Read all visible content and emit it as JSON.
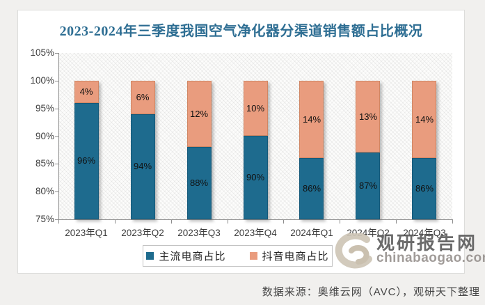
{
  "page": {
    "source_text": "数据来源：奥维云网（AVC），观研天下整理"
  },
  "watermark": {
    "logo": "swirl-g-logo",
    "brand_cn": "观研报告网",
    "brand_domain": "chinabaogao.com"
  },
  "chart_data": {
    "type": "bar",
    "stacked": true,
    "title": "2023-2024年三季度我国空气净化器分渠道销售额占比概况",
    "categories": [
      "2023年Q1",
      "2023年Q2",
      "2023年Q3",
      "2023年Q4",
      "2024年Q1",
      "2024年Q2",
      "2024年Q3"
    ],
    "series": [
      {
        "name": "主流电商占比",
        "color": "#1e6b8e",
        "border": "#14597a",
        "values": [
          96,
          94,
          88,
          90,
          86,
          87,
          86
        ]
      },
      {
        "name": "抖音电商占比",
        "color": "#e99c7e",
        "border": "#d08663",
        "values": [
          4,
          6,
          12,
          10,
          14,
          13,
          14
        ]
      }
    ],
    "value_suffix": "%",
    "ylim": [
      75,
      105
    ],
    "ytick_step": 5,
    "ylabel": "",
    "xlabel": "",
    "grid": false,
    "legend_position": "bottom"
  }
}
